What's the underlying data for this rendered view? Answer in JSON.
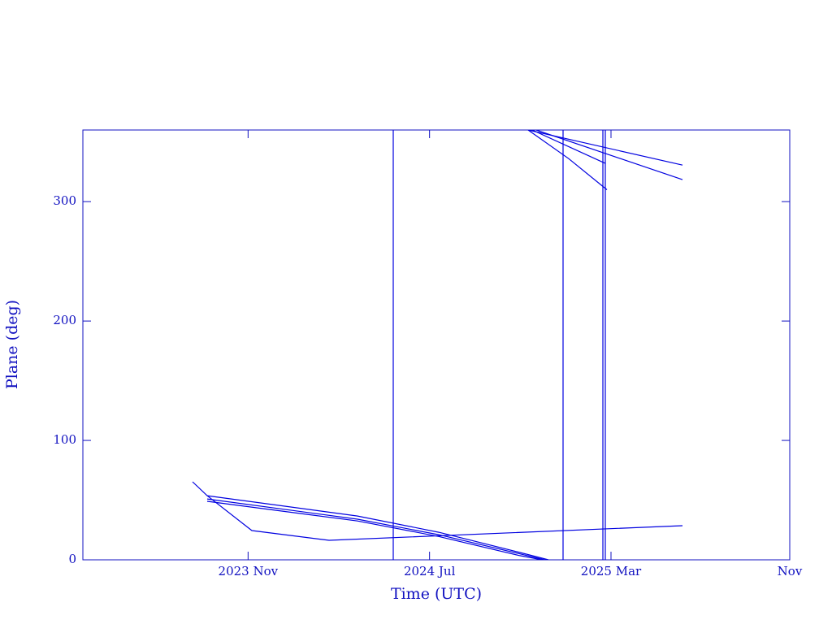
{
  "chart_data": {
    "type": "line",
    "x_label": "Time (UTC)",
    "y_label": "Plane (deg)",
    "xlim": [
      2023.22,
      2025.83
    ],
    "ylim": [
      0,
      360
    ],
    "xticks": [
      {
        "value": 2023.83,
        "label": "2023 Nov"
      },
      {
        "value": 2024.5,
        "label": "2024 Jul"
      },
      {
        "value": 2025.17,
        "label": "2025 Mar"
      },
      {
        "value": 2025.83,
        "label": "Nov"
      }
    ],
    "yticks": [
      0,
      100,
      200,
      300
    ],
    "series": [
      {
        "color": "#0000e0",
        "x": [
          2023.625,
          2023.679,
          2023.844,
          2024.129,
          2025.434
        ],
        "values": [
          65.3,
          53.7,
          24.5,
          16.3,
          28.6
        ]
      },
      {
        "color": "#0000e0",
        "x": [
          2023.679,
          2024.234,
          2024.534,
          2024.834,
          2024.939,
          null,
          2024.864,
          2025.434
        ],
        "values": [
          53.7,
          36.7,
          23.1,
          6.1,
          0,
          null,
          360,
          330.6
        ]
      },
      {
        "color": "#0000e0",
        "x": [
          2023.679,
          2024.234,
          2024.534,
          2024.834,
          2024.925,
          null,
          2024.894,
          2025.434
        ],
        "values": [
          51.0,
          34.0,
          21.0,
          5.0,
          0,
          null,
          360,
          318.4
        ]
      },
      {
        "color": "#0000e0",
        "x": [
          2023.679,
          2024.234,
          2024.534,
          2024.834,
          2024.915,
          null,
          2024.879,
          2025.149
        ],
        "values": [
          49.0,
          32.5,
          19.5,
          3.5,
          0,
          null,
          360,
          332.0
        ]
      },
      {
        "color": "#0000e0",
        "x": [
          2024.864,
          2025.014,
          2025.155
        ],
        "values": [
          360,
          336.0,
          310.0
        ]
      },
      {
        "color": "#0000e0",
        "x": [
          2024.366,
          2024.366,
          null,
          2024.993,
          2024.993,
          null,
          2025.14,
          2025.14,
          null,
          2025.149,
          2025.149
        ],
        "values": [
          0,
          360,
          null,
          0,
          360,
          null,
          0,
          360,
          null,
          0,
          360
        ]
      }
    ]
  }
}
